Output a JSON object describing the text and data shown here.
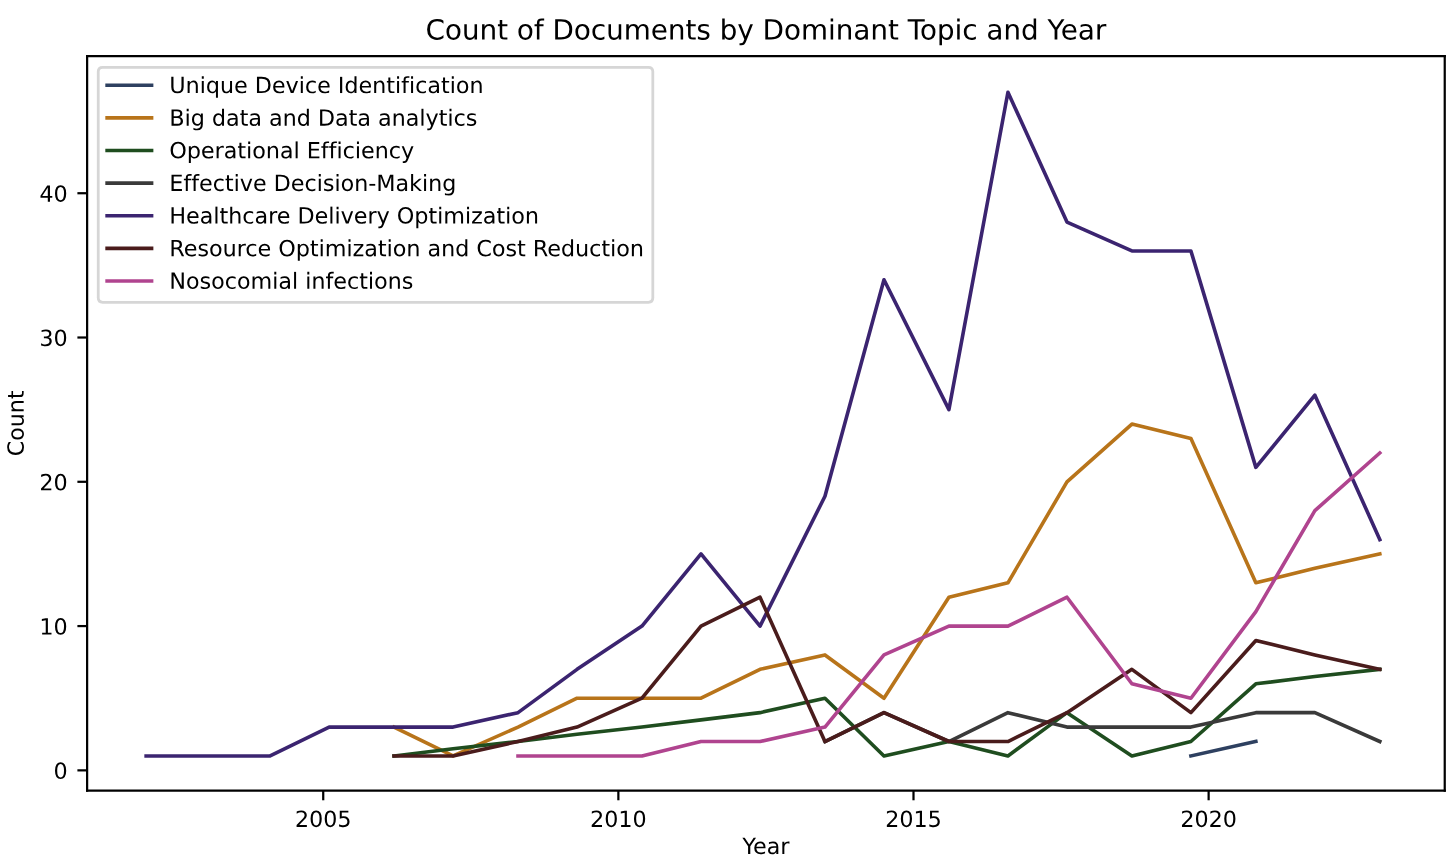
{
  "chart_data": {
    "type": "line",
    "title": "Count of Documents by Dominant Topic and Year",
    "xlabel": "Year",
    "ylabel": "Count",
    "xlim": [
      2001,
      2024
    ],
    "ylim": [
      -1.4,
      49.5
    ],
    "xticks": [
      2005,
      2010,
      2015,
      2020
    ],
    "yticks": [
      0,
      10,
      20,
      30,
      40
    ],
    "grid": false,
    "legend": "top left",
    "marker": "none",
    "line_style": "solid",
    "series": [
      {
        "name": "Unique Device Identification",
        "color": "#2e4060",
        "x": [
          2019.7,
          2020.8
        ],
        "values": [
          1,
          2
        ]
      },
      {
        "name": "Big data and Data analytics",
        "color": "#b8741a",
        "x": [
          2006.2,
          2007.2,
          2008.3,
          2009.3,
          2010.4,
          2011.4,
          2012.4,
          2013.5,
          2014.5,
          2015.6,
          2016.6,
          2017.6,
          2018.7,
          2019.7,
          2020.8,
          2021.8,
          2022.9
        ],
        "values": [
          3,
          1,
          3,
          5,
          5,
          5,
          7,
          8,
          5,
          12,
          13,
          20,
          24,
          23,
          13,
          14,
          15
        ]
      },
      {
        "name": "Operational Efficiency",
        "color": "#1f4d1f",
        "x": [
          2006.2,
          2007.2,
          2008.3,
          2009.3,
          2010.4,
          2011.4,
          2012.4,
          2013.5,
          2014.5,
          2015.6,
          2016.6,
          2017.6,
          2018.7,
          2019.7,
          2020.8,
          2021.8,
          2022.9
        ],
        "values": [
          1,
          1.5,
          2,
          2.5,
          3,
          3.5,
          4,
          5,
          1,
          2,
          1,
          4,
          1,
          2,
          6,
          6.5,
          7
        ]
      },
      {
        "name": "Effective Decision-Making",
        "color": "#3a3a3a",
        "x": [
          2013.5,
          2014.5,
          2015.6,
          2016.6,
          2017.6,
          2018.7,
          2019.7,
          2020.8,
          2021.8,
          2022.9
        ],
        "values": [
          2,
          4,
          2,
          4,
          3,
          3,
          3,
          4,
          4,
          2
        ]
      },
      {
        "name": "Healthcare Delivery Optimization",
        "color": "#3b2470",
        "x": [
          2002.0,
          2003.05,
          2004.1,
          2005.1,
          2006.2,
          2007.2,
          2008.3,
          2009.3,
          2010.4,
          2011.4,
          2012.4,
          2013.5,
          2014.5,
          2015.6,
          2016.6,
          2017.6,
          2018.7,
          2019.7,
          2020.8,
          2021.8,
          2022.9
        ],
        "values": [
          1,
          1,
          1,
          3,
          3,
          3,
          4,
          7,
          10,
          15,
          10,
          19,
          34,
          25,
          47,
          38,
          36,
          36,
          21,
          26,
          16
        ]
      },
      {
        "name": "Resource Optimization and Cost Reduction",
        "color": "#4a1c1c",
        "x": [
          2006.2,
          2007.2,
          2008.3,
          2009.3,
          2010.4,
          2011.4,
          2012.4,
          2013.5,
          2014.5,
          2015.6,
          2016.6,
          2017.6,
          2018.7,
          2019.7,
          2020.8,
          2021.8,
          2022.9
        ],
        "values": [
          1,
          1,
          2,
          3,
          5,
          10,
          12,
          2,
          4,
          2,
          2,
          4,
          7,
          4,
          9,
          8,
          7
        ]
      },
      {
        "name": "Nosocomial infections",
        "color": "#b0448f",
        "x": [
          2008.3,
          2009.3,
          2010.4,
          2011.4,
          2012.4,
          2013.5,
          2014.5,
          2015.6,
          2016.6,
          2017.6,
          2018.7,
          2019.7,
          2020.8,
          2021.8,
          2022.9
        ],
        "values": [
          1,
          1,
          1,
          2,
          2,
          3,
          8,
          10,
          10,
          12,
          6,
          5,
          11,
          18,
          22
        ]
      }
    ]
  }
}
